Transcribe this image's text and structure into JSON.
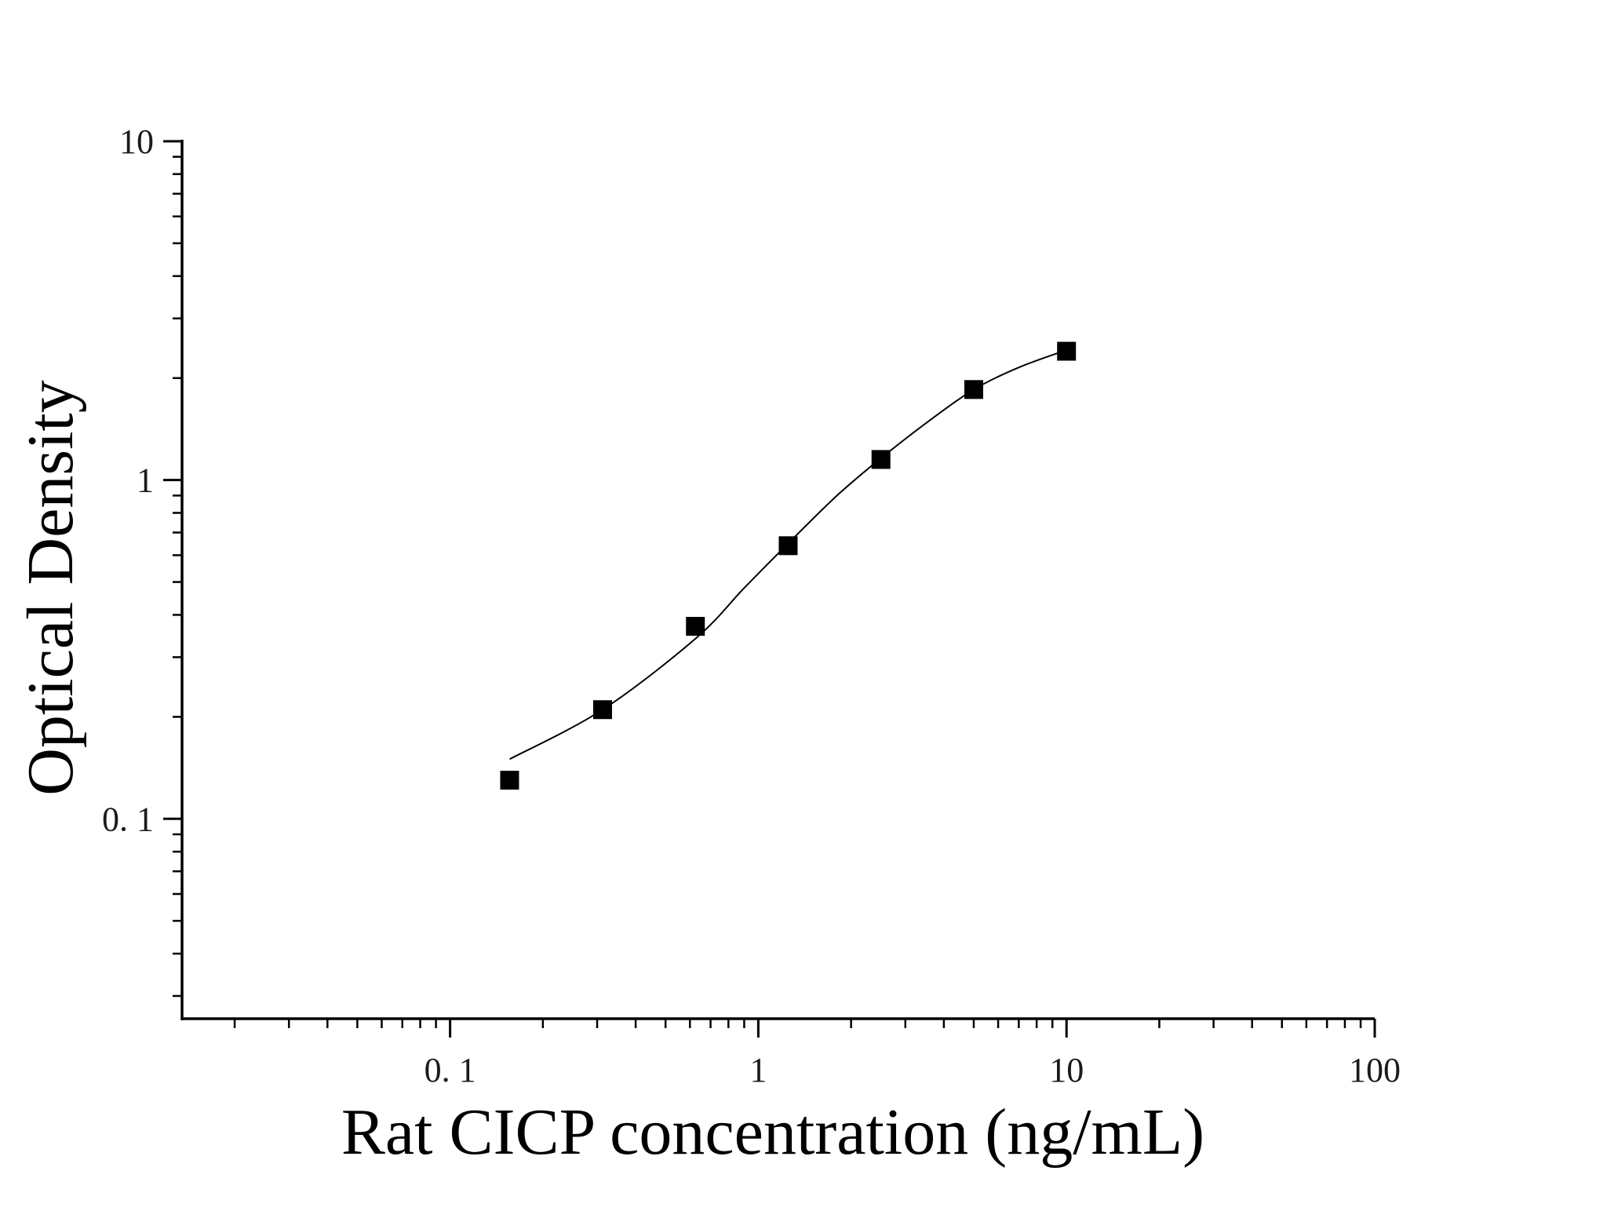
{
  "chart_data": {
    "type": "scatter",
    "title": "",
    "xlabel": "Rat CICP concentration (ng/mL)",
    "ylabel": "Optical Density",
    "x_scale": "log",
    "y_scale": "log",
    "xlim": [
      0.0135,
      100
    ],
    "ylim": [
      0.0257,
      10
    ],
    "x_ticks": [
      {
        "value": 0.1,
        "label": "0. 1"
      },
      {
        "value": 1,
        "label": "1"
      },
      {
        "value": 10,
        "label": "10"
      },
      {
        "value": 100,
        "label": "100"
      }
    ],
    "y_ticks": [
      {
        "value": 0.1,
        "label": "0. 1"
      },
      {
        "value": 1,
        "label": "1"
      },
      {
        "value": 10,
        "label": "10"
      }
    ],
    "grid": false,
    "legend": "none",
    "series": [
      {
        "marker": "square",
        "color": "#000000",
        "x": [
          0.156,
          0.3125,
          0.625,
          1.25,
          2.5,
          5,
          10
        ],
        "y": [
          0.13,
          0.21,
          0.37,
          0.64,
          1.15,
          1.85,
          2.4
        ]
      }
    ],
    "fit_curve": {
      "color": "#000000",
      "x": [
        0.156,
        0.3125,
        0.625,
        0.9,
        1.25,
        1.8,
        2.5,
        3.6,
        5,
        7,
        10
      ],
      "y": [
        0.15,
        0.21,
        0.34,
        0.48,
        0.65,
        0.9,
        1.16,
        1.5,
        1.85,
        2.15,
        2.42
      ]
    }
  }
}
